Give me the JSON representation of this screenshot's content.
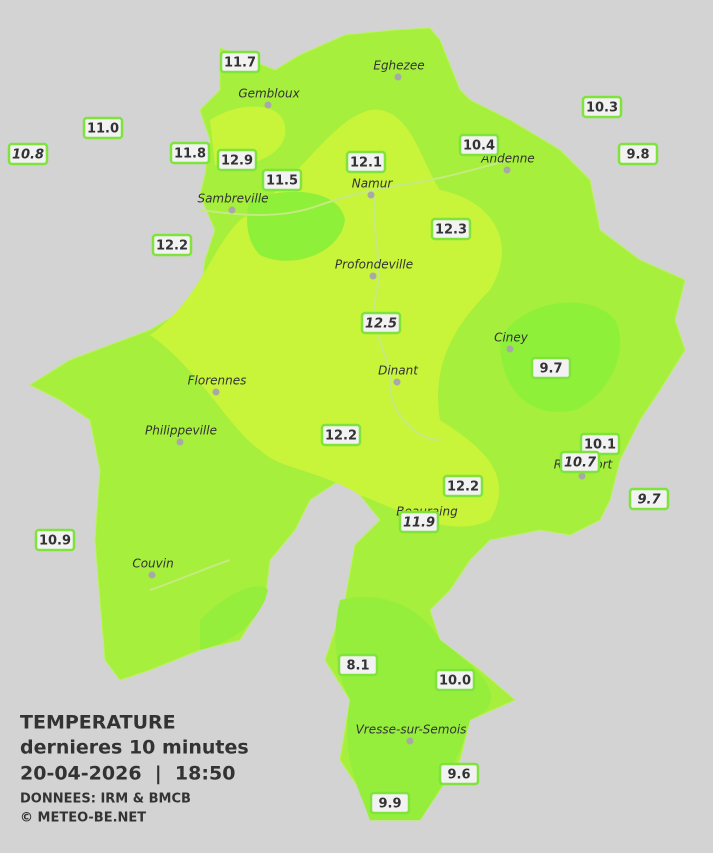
{
  "legend": {
    "title": "TEMPERATURE",
    "subtitle": "dernieres 10 minutes",
    "datetime": "20-04-2026  |  18:50",
    "source": "DONNEES: IRM & BMCB",
    "copyright": "© METEO-BE.NET"
  },
  "cities": [
    "Eghezee",
    "Gembloux",
    "Andenne",
    "Namur",
    "Sambreville",
    "Profondeville",
    "Ciney",
    "Dinant",
    "Florennes",
    "Philippeville",
    "Rochefort",
    "Beauraing",
    "Couvin",
    "Vresse-sur-Semois"
  ],
  "stations": [
    {
      "label": "11.7",
      "italic": false
    },
    {
      "label": "11.0",
      "italic": false
    },
    {
      "label": "10.8",
      "italic": true
    },
    {
      "label": "11.8",
      "italic": false
    },
    {
      "label": "12.9",
      "italic": false
    },
    {
      "label": "11.5",
      "italic": false
    },
    {
      "label": "12.1",
      "italic": false
    },
    {
      "label": "10.4",
      "italic": false
    },
    {
      "label": "10.3",
      "italic": false
    },
    {
      "label": "9.8",
      "italic": false
    },
    {
      "label": "12.2",
      "italic": false
    },
    {
      "label": "12.3",
      "italic": false
    },
    {
      "label": "12.5",
      "italic": true
    },
    {
      "label": "9.7",
      "italic": false
    },
    {
      "label": "12.2",
      "italic": false
    },
    {
      "label": "10.1",
      "italic": false
    },
    {
      "label": "10.7",
      "italic": true
    },
    {
      "label": "9.7",
      "italic": true
    },
    {
      "label": "12.2",
      "italic": false
    },
    {
      "label": "11.9",
      "italic": true
    },
    {
      "label": "10.9",
      "italic": false
    },
    {
      "label": "8.1",
      "italic": false
    },
    {
      "label": "10.0",
      "italic": false
    },
    {
      "label": "9.6",
      "italic": false
    },
    {
      "label": "9.9",
      "italic": false
    }
  ]
}
